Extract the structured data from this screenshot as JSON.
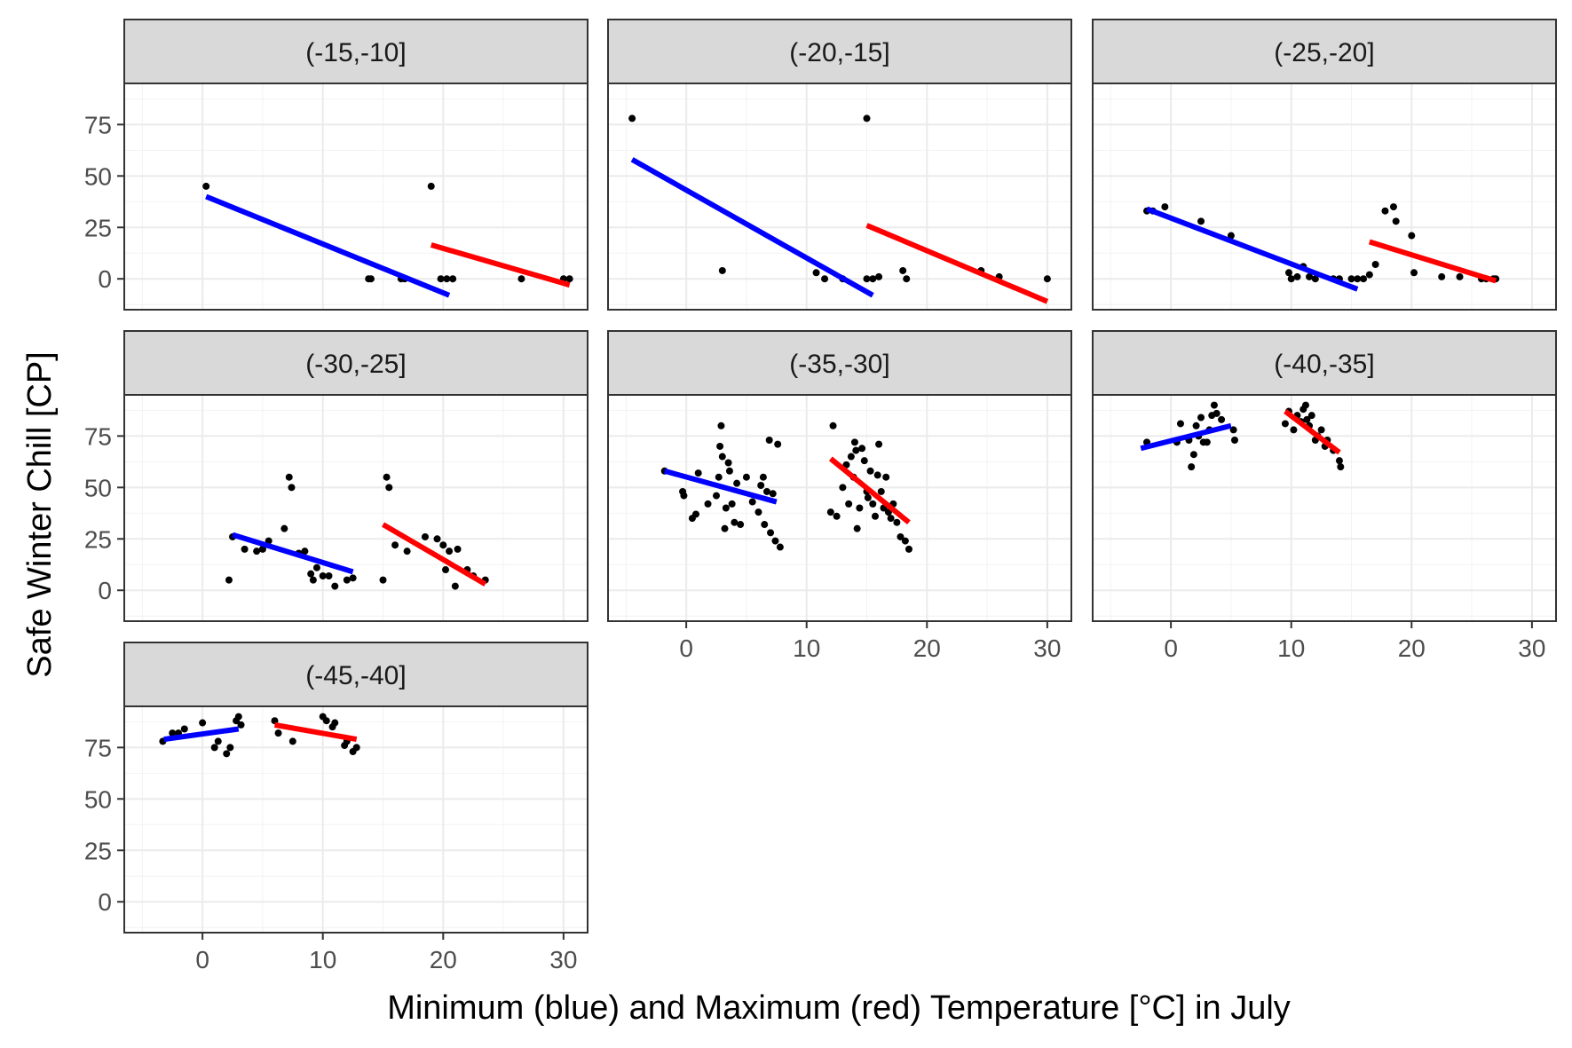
{
  "chart_data": {
    "type": "scatter",
    "facet_layout": "3 columns, 3 rows, 7 panels",
    "xlabel": "Minimum (blue) and Maximum (red) Temperature [°C] in July",
    "ylabel": "Safe Winter Chill [CP]",
    "xlim": [
      -6.5,
      32
    ],
    "ylim": [
      -15,
      95
    ],
    "x_ticks": [
      "0",
      "10",
      "20",
      "30"
    ],
    "y_ticks": [
      "0",
      "25",
      "50",
      "75"
    ],
    "grid": true,
    "colors": {
      "min_line": "#0000ff",
      "max_line": "#ff0000",
      "points": "#000000",
      "strip_fill": "#d9d9d9"
    },
    "panels": [
      {
        "label": "(-15,-10]",
        "min_points": [
          [
            0.3,
            45
          ],
          [
            13.8,
            0
          ],
          [
            14,
            0
          ],
          [
            16.5,
            0
          ],
          [
            16.8,
            0
          ]
        ],
        "max_points": [
          [
            19,
            45
          ],
          [
            19.8,
            0
          ],
          [
            20.3,
            0
          ],
          [
            20.8,
            0
          ],
          [
            26.5,
            0
          ],
          [
            30,
            0
          ],
          [
            30.5,
            0
          ]
        ],
        "min_fit": [
          [
            0.3,
            40
          ],
          [
            20.5,
            -8
          ]
        ],
        "max_fit": [
          [
            19,
            16.5
          ],
          [
            30.5,
            -3
          ]
        ]
      },
      {
        "label": "(-20,-15]",
        "min_points": [
          [
            -4.5,
            78
          ],
          [
            3,
            4
          ],
          [
            10.8,
            3
          ],
          [
            11.5,
            0
          ],
          [
            13,
            0
          ],
          [
            15,
            0
          ]
        ],
        "max_points": [
          [
            15,
            78
          ],
          [
            15.5,
            0
          ],
          [
            16,
            1
          ],
          [
            18,
            4
          ],
          [
            18.3,
            0
          ],
          [
            24.5,
            4
          ],
          [
            26,
            1
          ],
          [
            30,
            0
          ]
        ],
        "min_fit": [
          [
            -4.5,
            58
          ],
          [
            15.5,
            -8
          ]
        ],
        "max_fit": [
          [
            15,
            26
          ],
          [
            30,
            -11
          ]
        ]
      },
      {
        "label": "(-25,-20]",
        "min_points": [
          [
            -2,
            33
          ],
          [
            -1.5,
            33
          ],
          [
            -0.5,
            35
          ],
          [
            2.5,
            28
          ],
          [
            5,
            21
          ],
          [
            9.8,
            3
          ],
          [
            10,
            0
          ],
          [
            10.5,
            1
          ],
          [
            11,
            6
          ],
          [
            11.5,
            1
          ],
          [
            12,
            0
          ],
          [
            13.5,
            0
          ],
          [
            14,
            0
          ],
          [
            15,
            0
          ],
          [
            15.5,
            0
          ]
        ],
        "max_points": [
          [
            16,
            0
          ],
          [
            16.5,
            2
          ],
          [
            17,
            7
          ],
          [
            17.8,
            33
          ],
          [
            18.5,
            35
          ],
          [
            18.7,
            28
          ],
          [
            20,
            21
          ],
          [
            20.2,
            3
          ],
          [
            22.5,
            1
          ],
          [
            24,
            1
          ],
          [
            25.8,
            0
          ],
          [
            26.2,
            0
          ],
          [
            26.8,
            0
          ],
          [
            27,
            0
          ]
        ],
        "min_fit": [
          [
            -2,
            34
          ],
          [
            15.5,
            -5
          ]
        ],
        "max_fit": [
          [
            16.5,
            18
          ],
          [
            27,
            -1
          ]
        ]
      },
      {
        "label": "(-30,-25]",
        "min_points": [
          [
            2.2,
            5
          ],
          [
            2.5,
            26
          ],
          [
            3.5,
            20
          ],
          [
            4.5,
            19
          ],
          [
            5,
            20
          ],
          [
            5.5,
            24
          ],
          [
            6.8,
            30
          ],
          [
            7.2,
            55
          ],
          [
            7.4,
            50
          ],
          [
            8,
            18
          ],
          [
            8.5,
            19
          ],
          [
            9,
            8
          ],
          [
            9.2,
            5
          ],
          [
            9.5,
            11
          ],
          [
            10,
            7
          ],
          [
            10.5,
            7
          ],
          [
            11,
            2
          ],
          [
            12,
            5
          ],
          [
            12.5,
            6
          ]
        ],
        "max_points": [
          [
            15,
            5
          ],
          [
            15.3,
            55
          ],
          [
            15.5,
            50
          ],
          [
            16,
            22
          ],
          [
            17,
            19
          ],
          [
            18.5,
            26
          ],
          [
            19.5,
            25
          ],
          [
            20,
            22
          ],
          [
            20.2,
            10
          ],
          [
            20.5,
            19
          ],
          [
            21,
            2
          ],
          [
            21.2,
            20
          ],
          [
            22,
            10
          ],
          [
            22.5,
            7
          ],
          [
            23.5,
            5
          ]
        ],
        "min_fit": [
          [
            2.5,
            27
          ],
          [
            12.5,
            9
          ]
        ],
        "max_fit": [
          [
            15,
            32
          ],
          [
            23.5,
            3
          ]
        ]
      },
      {
        "label": "(-35,-30]",
        "min_points": [
          [
            -1.8,
            58
          ],
          [
            -0.3,
            48
          ],
          [
            -0.2,
            46
          ],
          [
            0.5,
            35
          ],
          [
            0.8,
            37
          ],
          [
            1,
            57
          ],
          [
            1.8,
            42
          ],
          [
            2.5,
            46
          ],
          [
            2.7,
            55
          ],
          [
            2.8,
            70
          ],
          [
            2.9,
            80
          ],
          [
            3,
            65
          ],
          [
            3.2,
            30
          ],
          [
            3.3,
            40
          ],
          [
            3.5,
            62
          ],
          [
            3.6,
            58
          ],
          [
            3.8,
            42
          ],
          [
            4,
            33
          ],
          [
            4.2,
            52
          ],
          [
            4.5,
            32
          ],
          [
            5,
            55
          ],
          [
            5.5,
            43
          ],
          [
            6,
            38
          ],
          [
            6.2,
            51
          ],
          [
            6.4,
            55
          ],
          [
            6.5,
            32
          ],
          [
            6.7,
            48
          ],
          [
            6.9,
            73
          ],
          [
            7,
            28
          ],
          [
            7.2,
            47
          ],
          [
            7.4,
            24
          ],
          [
            7.6,
            71
          ],
          [
            7.8,
            21
          ]
        ],
        "max_points": [
          [
            12,
            38
          ],
          [
            12.2,
            80
          ],
          [
            12.5,
            36
          ],
          [
            13,
            50
          ],
          [
            13.3,
            61
          ],
          [
            13.5,
            42
          ],
          [
            13.7,
            65
          ],
          [
            13.9,
            55
          ],
          [
            14,
            72
          ],
          [
            14.1,
            68
          ],
          [
            14.2,
            30
          ],
          [
            14.4,
            40
          ],
          [
            14.6,
            69
          ],
          [
            14.8,
            63
          ],
          [
            15,
            48
          ],
          [
            15.1,
            45
          ],
          [
            15.3,
            58
          ],
          [
            15.5,
            42
          ],
          [
            15.7,
            36
          ],
          [
            15.9,
            56
          ],
          [
            16,
            71
          ],
          [
            16.2,
            48
          ],
          [
            16.4,
            40
          ],
          [
            16.6,
            55
          ],
          [
            16.8,
            38
          ],
          [
            17,
            35
          ],
          [
            17.2,
            42
          ],
          [
            17.5,
            33
          ],
          [
            17.8,
            26
          ],
          [
            18.2,
            24
          ],
          [
            18.5,
            20
          ]
        ],
        "min_fit": [
          [
            -1.8,
            58
          ],
          [
            7.5,
            43
          ]
        ],
        "max_fit": [
          [
            12,
            64
          ],
          [
            18.5,
            33
          ]
        ]
      },
      {
        "label": "(-40,-35]",
        "min_points": [
          [
            -2,
            72
          ],
          [
            0.5,
            72
          ],
          [
            0.8,
            81
          ],
          [
            1.5,
            73
          ],
          [
            1.7,
            60
          ],
          [
            1.9,
            66
          ],
          [
            2.1,
            80
          ],
          [
            2.3,
            75
          ],
          [
            2.5,
            84
          ],
          [
            2.7,
            72
          ],
          [
            3,
            72
          ],
          [
            3.2,
            78
          ],
          [
            3.4,
            85
          ],
          [
            3.6,
            90
          ],
          [
            3.8,
            86
          ],
          [
            4.2,
            83
          ],
          [
            5.2,
            78
          ],
          [
            5.3,
            73
          ]
        ],
        "max_points": [
          [
            9.5,
            81
          ],
          [
            9.8,
            87
          ],
          [
            10.2,
            78
          ],
          [
            10.5,
            85
          ],
          [
            10.8,
            82
          ],
          [
            11,
            88
          ],
          [
            11.2,
            90
          ],
          [
            11.3,
            83
          ],
          [
            11.5,
            80
          ],
          [
            11.7,
            85
          ],
          [
            12,
            73
          ],
          [
            12.2,
            75
          ],
          [
            12.5,
            78
          ],
          [
            12.8,
            70
          ],
          [
            13,
            73
          ],
          [
            13.5,
            68
          ],
          [
            14,
            63
          ],
          [
            14.1,
            60
          ]
        ],
        "min_fit": [
          [
            -2.5,
            69
          ],
          [
            5,
            80
          ]
        ],
        "max_fit": [
          [
            9.5,
            87
          ],
          [
            14,
            67
          ]
        ]
      },
      {
        "label": "(-45,-40]",
        "min_points": [
          [
            -3.3,
            78
          ],
          [
            -2.5,
            82
          ],
          [
            -2,
            82
          ],
          [
            -1.5,
            84
          ],
          [
            0,
            87
          ],
          [
            1,
            75
          ],
          [
            1.3,
            78
          ],
          [
            2,
            72
          ],
          [
            2.3,
            75
          ],
          [
            2.8,
            88
          ],
          [
            3,
            90
          ],
          [
            3.2,
            86
          ]
        ],
        "max_points": [
          [
            6,
            88
          ],
          [
            6.3,
            82
          ],
          [
            7.5,
            78
          ],
          [
            10,
            90
          ],
          [
            10.3,
            88
          ],
          [
            10.8,
            85
          ],
          [
            11,
            87
          ],
          [
            11.8,
            76
          ],
          [
            12,
            78
          ],
          [
            12.5,
            73
          ],
          [
            12.8,
            75
          ]
        ],
        "min_fit": [
          [
            -3.2,
            79
          ],
          [
            3,
            84
          ]
        ],
        "max_fit": [
          [
            6,
            86
          ],
          [
            12.8,
            79
          ]
        ]
      }
    ]
  }
}
